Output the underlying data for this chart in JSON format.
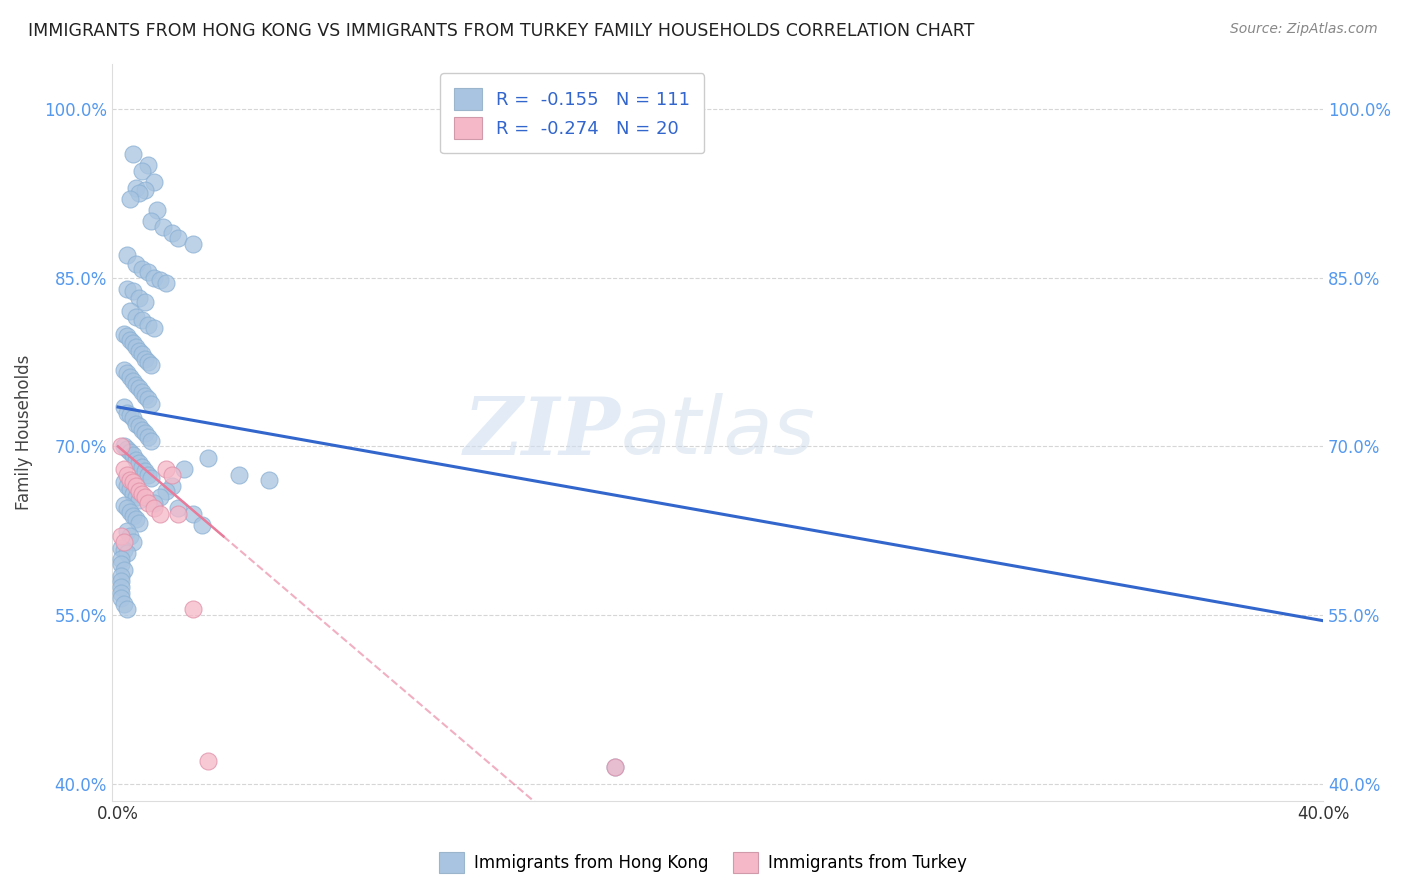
{
  "title": "IMMIGRANTS FROM HONG KONG VS IMMIGRANTS FROM TURKEY FAMILY HOUSEHOLDS CORRELATION CHART",
  "source": "Source: ZipAtlas.com",
  "ylabel": "Family Households",
  "y_ticks": [
    0.4,
    0.55,
    0.7,
    0.85,
    1.0
  ],
  "y_tick_labels": [
    "40.0%",
    "55.0%",
    "70.0%",
    "85.0%",
    "100.0%"
  ],
  "x_ticks": [
    0.0,
    0.04,
    0.08,
    0.12,
    0.16,
    0.2,
    0.24,
    0.28,
    0.32,
    0.36,
    0.4
  ],
  "x_tick_labels": [
    "0.0%",
    "",
    "",
    "",
    "",
    "",
    "",
    "",
    "",
    "",
    "40.0%"
  ],
  "hk_R": -0.155,
  "hk_N": 111,
  "tr_R": -0.274,
  "tr_N": 20,
  "hk_color": "#a8c4e0",
  "tr_color": "#f4b8c8",
  "hk_line_color": "#3366cc",
  "tr_line_color": "#e87a9a",
  "hk_scatter_x": [
    0.005,
    0.01,
    0.008,
    0.012,
    0.006,
    0.009,
    0.007,
    0.004,
    0.013,
    0.011,
    0.015,
    0.018,
    0.02,
    0.025,
    0.003,
    0.006,
    0.008,
    0.01,
    0.012,
    0.014,
    0.016,
    0.003,
    0.005,
    0.007,
    0.009,
    0.004,
    0.006,
    0.008,
    0.01,
    0.012,
    0.002,
    0.003,
    0.004,
    0.005,
    0.006,
    0.007,
    0.008,
    0.009,
    0.01,
    0.011,
    0.002,
    0.003,
    0.004,
    0.005,
    0.006,
    0.007,
    0.008,
    0.009,
    0.01,
    0.011,
    0.002,
    0.003,
    0.004,
    0.005,
    0.006,
    0.007,
    0.008,
    0.009,
    0.01,
    0.011,
    0.002,
    0.003,
    0.004,
    0.005,
    0.006,
    0.007,
    0.008,
    0.009,
    0.01,
    0.011,
    0.002,
    0.003,
    0.004,
    0.005,
    0.006,
    0.007,
    0.002,
    0.003,
    0.004,
    0.005,
    0.006,
    0.007,
    0.003,
    0.004,
    0.005,
    0.001,
    0.002,
    0.003,
    0.001,
    0.001,
    0.002,
    0.001,
    0.001,
    0.001,
    0.001,
    0.001,
    0.002,
    0.003,
    0.03,
    0.022,
    0.04,
    0.05,
    0.018,
    0.016,
    0.014,
    0.012,
    0.02,
    0.025,
    0.028,
    0.165
  ],
  "hk_scatter_y": [
    0.96,
    0.95,
    0.945,
    0.935,
    0.93,
    0.928,
    0.925,
    0.92,
    0.91,
    0.9,
    0.895,
    0.89,
    0.885,
    0.88,
    0.87,
    0.862,
    0.858,
    0.855,
    0.85,
    0.848,
    0.845,
    0.84,
    0.838,
    0.832,
    0.828,
    0.82,
    0.815,
    0.812,
    0.808,
    0.805,
    0.8,
    0.798,
    0.795,
    0.792,
    0.788,
    0.785,
    0.782,
    0.778,
    0.775,
    0.772,
    0.768,
    0.765,
    0.762,
    0.758,
    0.755,
    0.752,
    0.748,
    0.745,
    0.742,
    0.738,
    0.735,
    0.73,
    0.728,
    0.725,
    0.72,
    0.718,
    0.715,
    0.712,
    0.708,
    0.705,
    0.7,
    0.698,
    0.695,
    0.692,
    0.688,
    0.685,
    0.682,
    0.678,
    0.675,
    0.672,
    0.668,
    0.665,
    0.662,
    0.658,
    0.655,
    0.652,
    0.648,
    0.645,
    0.642,
    0.638,
    0.635,
    0.632,
    0.625,
    0.62,
    0.615,
    0.61,
    0.608,
    0.605,
    0.6,
    0.595,
    0.59,
    0.585,
    0.58,
    0.575,
    0.57,
    0.565,
    0.56,
    0.555,
    0.69,
    0.68,
    0.675,
    0.67,
    0.665,
    0.66,
    0.655,
    0.65,
    0.645,
    0.64,
    0.63,
    0.415
  ],
  "tr_scatter_x": [
    0.001,
    0.002,
    0.003,
    0.004,
    0.005,
    0.006,
    0.007,
    0.008,
    0.009,
    0.01,
    0.012,
    0.014,
    0.016,
    0.018,
    0.02,
    0.025,
    0.001,
    0.002,
    0.03,
    0.165
  ],
  "tr_scatter_y": [
    0.7,
    0.68,
    0.675,
    0.67,
    0.668,
    0.665,
    0.66,
    0.658,
    0.655,
    0.65,
    0.645,
    0.64,
    0.68,
    0.675,
    0.64,
    0.555,
    0.62,
    0.615,
    0.42,
    0.415
  ],
  "hk_line_x0": 0.0,
  "hk_line_x1": 0.4,
  "hk_line_y0": 0.735,
  "hk_line_y1": 0.545,
  "tr_line_solid_x0": 0.0,
  "tr_line_solid_x1": 0.035,
  "tr_line_y0": 0.7,
  "tr_line_y1": 0.62,
  "tr_line_dash_x0": 0.035,
  "tr_line_dash_x1": 0.4,
  "watermark_zip": "ZIP",
  "watermark_atlas": "atlas",
  "background_color": "#ffffff",
  "grid_color": "#cccccc",
  "xlim": [
    -0.002,
    0.4
  ],
  "ylim": [
    0.385,
    1.04
  ]
}
